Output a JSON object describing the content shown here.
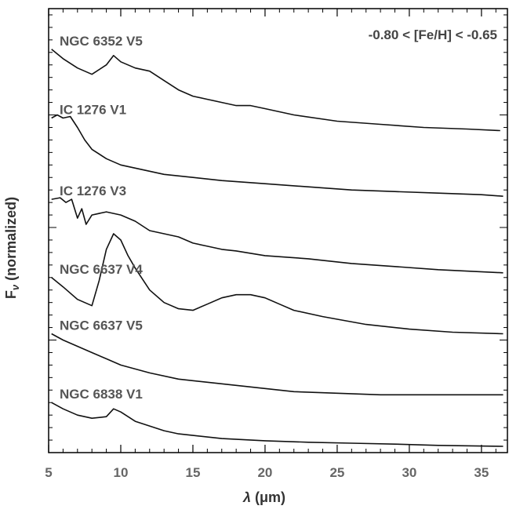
{
  "chart_data": {
    "type": "line",
    "title": "",
    "annotation": "-0.80 < [Fe/H] < -0.65",
    "xlabel_symbol": "λ",
    "xlabel_unit": "(μm)",
    "ylabel_symbol": "F",
    "ylabel_subscript": "ν",
    "ylabel_text": "(normalized)",
    "xlim": [
      5,
      36.8
    ],
    "xticks": [
      5,
      10,
      15,
      20,
      25,
      30,
      35
    ],
    "x_minor_step": 1,
    "ylim": [
      0,
      14.2
    ],
    "y_major_ticks": [
      3.6,
      7.2,
      10.8
    ],
    "y_minor_step": 0.4,
    "grid": false,
    "series": [
      {
        "name": "NGC 6352 V5",
        "points": [
          [
            5.2,
            12.9
          ],
          [
            6,
            12.6
          ],
          [
            7,
            12.3
          ],
          [
            8,
            12.1
          ],
          [
            9,
            12.4
          ],
          [
            9.5,
            12.7
          ],
          [
            10,
            12.5
          ],
          [
            11,
            12.3
          ],
          [
            12,
            12.2
          ],
          [
            13,
            11.9
          ],
          [
            14,
            11.6
          ],
          [
            15,
            11.4
          ],
          [
            16,
            11.3
          ],
          [
            17,
            11.2
          ],
          [
            18,
            11.1
          ],
          [
            19,
            11.1
          ],
          [
            20,
            11.0
          ],
          [
            21,
            10.9
          ],
          [
            22,
            10.8
          ],
          [
            25,
            10.6
          ],
          [
            28,
            10.5
          ],
          [
            31,
            10.4
          ],
          [
            34,
            10.35
          ],
          [
            36.3,
            10.3
          ]
        ]
      },
      {
        "name": "IC 1276 V1",
        "points": [
          [
            5.2,
            10.7
          ],
          [
            5.6,
            10.8
          ],
          [
            6,
            10.7
          ],
          [
            6.5,
            10.75
          ],
          [
            7,
            10.4
          ],
          [
            7.5,
            10.0
          ],
          [
            8,
            9.7
          ],
          [
            9,
            9.4
          ],
          [
            10,
            9.2
          ],
          [
            11,
            9.1
          ],
          [
            12,
            9.0
          ],
          [
            13,
            8.9
          ],
          [
            15,
            8.8
          ],
          [
            17,
            8.7
          ],
          [
            20,
            8.6
          ],
          [
            23,
            8.5
          ],
          [
            26,
            8.4
          ],
          [
            29,
            8.35
          ],
          [
            32,
            8.3
          ],
          [
            35,
            8.25
          ],
          [
            36.5,
            8.2
          ]
        ]
      },
      {
        "name": "IC 1276 V3",
        "points": [
          [
            5.2,
            8.1
          ],
          [
            5.8,
            8.15
          ],
          [
            6.2,
            8.0
          ],
          [
            6.6,
            8.1
          ],
          [
            7,
            7.5
          ],
          [
            7.3,
            7.8
          ],
          [
            7.6,
            7.3
          ],
          [
            8,
            7.6
          ],
          [
            9,
            7.7
          ],
          [
            10,
            7.6
          ],
          [
            11,
            7.4
          ],
          [
            12,
            7.1
          ],
          [
            13,
            7.0
          ],
          [
            14,
            6.9
          ],
          [
            15,
            6.7
          ],
          [
            16,
            6.6
          ],
          [
            17,
            6.5
          ],
          [
            18,
            6.45
          ],
          [
            20,
            6.3
          ],
          [
            23,
            6.2
          ],
          [
            26,
            6.05
          ],
          [
            29,
            5.95
          ],
          [
            32,
            5.85
          ],
          [
            36.5,
            5.75
          ]
        ]
      },
      {
        "name": "NGC 6637 V4",
        "points": [
          [
            5.2,
            5.6
          ],
          [
            6,
            5.3
          ],
          [
            7,
            4.9
          ],
          [
            8,
            4.7
          ],
          [
            8.5,
            5.5
          ],
          [
            9,
            6.5
          ],
          [
            9.5,
            7.0
          ],
          [
            10,
            6.8
          ],
          [
            10.5,
            6.3
          ],
          [
            11,
            5.9
          ],
          [
            12,
            5.2
          ],
          [
            13,
            4.8
          ],
          [
            14,
            4.6
          ],
          [
            15,
            4.55
          ],
          [
            16,
            4.75
          ],
          [
            17,
            4.95
          ],
          [
            18,
            5.05
          ],
          [
            19,
            5.05
          ],
          [
            20,
            4.95
          ],
          [
            21,
            4.75
          ],
          [
            22,
            4.55
          ],
          [
            24,
            4.35
          ],
          [
            27,
            4.1
          ],
          [
            30,
            3.95
          ],
          [
            33,
            3.85
          ],
          [
            36.5,
            3.8
          ]
        ]
      },
      {
        "name": "NGC 6637 V5",
        "points": [
          [
            5.2,
            3.8
          ],
          [
            6,
            3.6
          ],
          [
            7,
            3.4
          ],
          [
            8,
            3.2
          ],
          [
            9,
            3.0
          ],
          [
            10,
            2.8
          ],
          [
            12,
            2.55
          ],
          [
            14,
            2.35
          ],
          [
            16,
            2.25
          ],
          [
            18,
            2.15
          ],
          [
            20,
            2.05
          ],
          [
            22,
            1.95
          ],
          [
            25,
            1.9
          ],
          [
            28,
            1.85
          ],
          [
            31,
            1.85
          ],
          [
            34,
            1.85
          ],
          [
            36.5,
            1.85
          ]
        ]
      },
      {
        "name": "NGC 6838 V1",
        "points": [
          [
            5.2,
            1.6
          ],
          [
            6,
            1.4
          ],
          [
            7,
            1.2
          ],
          [
            8,
            1.1
          ],
          [
            9,
            1.15
          ],
          [
            9.5,
            1.4
          ],
          [
            10,
            1.3
          ],
          [
            11,
            1.0
          ],
          [
            12,
            0.85
          ],
          [
            13,
            0.7
          ],
          [
            14,
            0.6
          ],
          [
            15,
            0.55
          ],
          [
            17,
            0.45
          ],
          [
            20,
            0.38
          ],
          [
            23,
            0.33
          ],
          [
            26,
            0.3
          ],
          [
            29,
            0.27
          ],
          [
            32,
            0.23
          ],
          [
            36.5,
            0.2
          ]
        ]
      }
    ]
  }
}
